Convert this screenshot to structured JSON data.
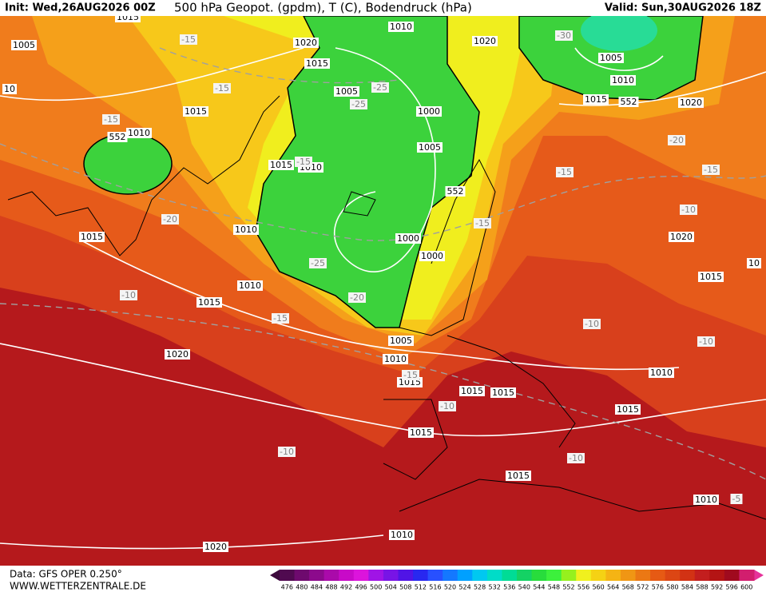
{
  "header": {
    "init": "Init: Wed,26AUG2026 00Z",
    "title": "500 hPa Geopot. (gpdm), T (C), Bodendruck (hPa)",
    "valid": "Valid: Sun,30AUG2026 18Z"
  },
  "footer": {
    "data_source": "Data: GFS OPER 0.250°",
    "website": "WWW.WETTERZENTRALE.DE"
  },
  "isobar_labels": [
    "1015",
    "1005",
    "1020",
    "1015",
    "1010",
    "1020",
    "1005",
    "1010",
    "1015",
    "1020",
    "1010",
    "1015",
    "1005",
    "1000",
    "1005",
    "1015",
    "1010",
    "1010",
    "1015",
    "1000",
    "1000",
    "1020",
    "1015",
    "1010",
    "1015",
    "1020",
    "1005",
    "1010",
    "1015",
    "1015",
    "1015",
    "1010",
    "1015",
    "1015",
    "1015",
    "1010",
    "1010",
    "1020",
    "10",
    "10"
  ],
  "temperature_labels": [
    "-15",
    "-15",
    "-15",
    "-25",
    "-25",
    "-30",
    "-20",
    "-15",
    "-15",
    "-10",
    "-15",
    "-20",
    "-25",
    "-20",
    "-10",
    "-15",
    "-10",
    "-10",
    "-15",
    "-10",
    "-10",
    "-10",
    "-5",
    "-15"
  ],
  "height_labels": [
    "552",
    "552",
    "552"
  ],
  "colorbar": {
    "labels": [
      476,
      480,
      484,
      488,
      492,
      496,
      500,
      504,
      508,
      512,
      516,
      520,
      524,
      528,
      532,
      536,
      540,
      544,
      548,
      552,
      556,
      560,
      564,
      568,
      572,
      576,
      580,
      584,
      588,
      592,
      596,
      600
    ],
    "colors": [
      "#500a50",
      "#6e0a6e",
      "#8c0a8c",
      "#aa0aaa",
      "#c80ac8",
      "#dc14dc",
      "#a014e6",
      "#7814e6",
      "#5014e6",
      "#2828f0",
      "#2850ff",
      "#1478ff",
      "#00a0ff",
      "#00c8f0",
      "#00dcc8",
      "#00dc96",
      "#14d264",
      "#28dc3c",
      "#3cf03c",
      "#96f01e",
      "#f0f01e",
      "#f5d214",
      "#f5b414",
      "#f09614",
      "#eb7814",
      "#e65a14",
      "#dc4614",
      "#d23214",
      "#c31e1e",
      "#b41414",
      "#a00a1e",
      "#d21e6e"
    ]
  }
}
